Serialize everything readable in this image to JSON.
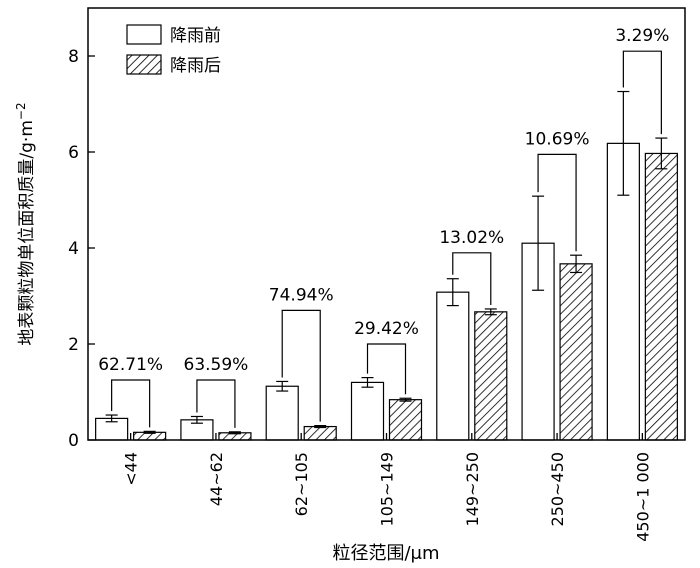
{
  "chart_data": {
    "type": "bar",
    "title": "",
    "xlabel": "粒径范围/μm",
    "ylabel": "地表颗粒物单位面积质量/g·m",
    "ylabel_superscript": "−2",
    "ylim": [
      0,
      9
    ],
    "yticks": [
      0,
      2,
      4,
      6,
      8
    ],
    "grid": false,
    "legend_position": "top-left",
    "categories": [
      "<44",
      "44~62",
      "62~105",
      "105~149",
      "149~250",
      "250~450",
      "450~1 000"
    ],
    "series": [
      {
        "name": "降雨前",
        "pattern": "plain",
        "values": [
          0.45,
          0.42,
          1.12,
          1.2,
          3.08,
          4.1,
          6.18
        ],
        "errors": [
          0.07,
          0.07,
          0.1,
          0.1,
          0.28,
          0.98,
          1.08
        ]
      },
      {
        "name": "降雨后",
        "pattern": "hatched",
        "values": [
          0.16,
          0.15,
          0.28,
          0.84,
          2.67,
          3.67,
          5.97
        ],
        "errors": [
          0.02,
          0.02,
          0.02,
          0.03,
          0.06,
          0.18,
          0.32
        ]
      }
    ],
    "annotations": [
      "62.71%",
      "63.59%",
      "74.94%",
      "29.42%",
      "13.02%",
      "10.69%",
      "3.29%"
    ],
    "bracket_tops": [
      1.25,
      1.25,
      2.7,
      2.0,
      3.9,
      5.95,
      8.1
    ]
  }
}
